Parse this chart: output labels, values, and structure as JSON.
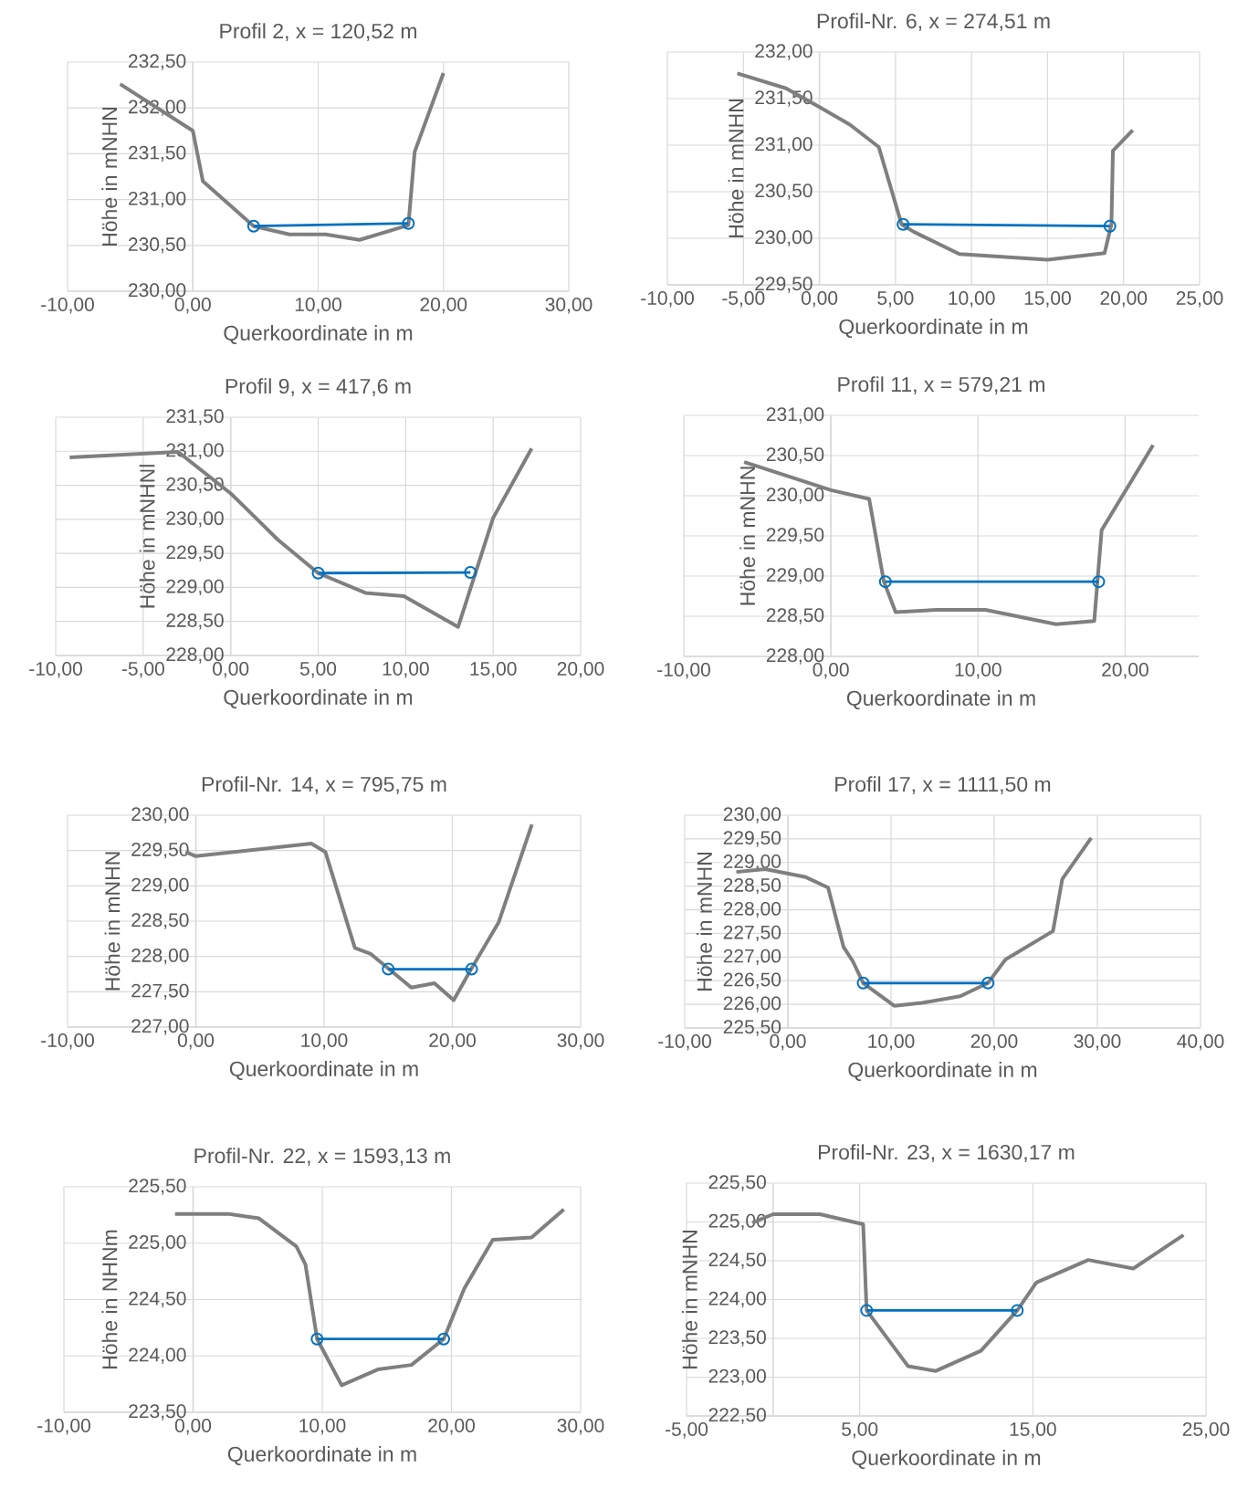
{
  "chart_data": [
    {
      "type": "line",
      "title": "Profil 2, x = 120,52 m",
      "xlabel": "Querkoordinate in m",
      "ylabel": "Höhe in mNHN",
      "grid": true,
      "xlim": [
        -10,
        30
      ],
      "xticks": [
        {
          "value": -10,
          "label": "-10,00"
        },
        {
          "value": 0,
          "label": "0,00"
        },
        {
          "value": 10,
          "label": "10,00"
        },
        {
          "value": 20,
          "label": "20,00"
        },
        {
          "value": 30,
          "label": "30,00"
        }
      ],
      "ylim": [
        230,
        232.5
      ],
      "yticks": [
        {
          "value": 230,
          "label": "230,00"
        },
        {
          "value": 230.5,
          "label": "230,50"
        },
        {
          "value": 231,
          "label": "231,00"
        },
        {
          "value": 231.5,
          "label": "231,50"
        },
        {
          "value": 232,
          "label": "232,00"
        },
        {
          "value": 232.5,
          "label": "232,50"
        }
      ],
      "series": [
        {
          "color": "#7f7f7f",
          "marker": "none",
          "x": [
            -5.8,
            0,
            0.8,
            4.85,
            7.7,
            10.6,
            13.3,
            17.2,
            17.7,
            20.0
          ],
          "values": [
            232.26,
            231.75,
            231.2,
            230.71,
            230.62,
            230.62,
            230.56,
            230.72,
            231.52,
            232.38
          ]
        },
        {
          "color": "#0070c0",
          "marker": "circle",
          "x": [
            4.85,
            17.2
          ],
          "values": [
            230.71,
            230.74
          ]
        }
      ]
    },
    {
      "type": "line",
      "title": "Profil-Nr. 6, x = 274,51 m",
      "xlabel": "Querkoordinate in m",
      "ylabel": "Höhe in mNHN",
      "grid": true,
      "xlim": [
        -10,
        25
      ],
      "xticks": [
        {
          "value": -10,
          "label": "-10,00"
        },
        {
          "value": -5,
          "label": "-5,00"
        },
        {
          "value": 0,
          "label": "0,00"
        },
        {
          "value": 5,
          "label": "5,00"
        },
        {
          "value": 10,
          "label": "10,00"
        },
        {
          "value": 15,
          "label": "15,00"
        },
        {
          "value": 20,
          "label": "20,00"
        },
        {
          "value": 25,
          "label": "25,00"
        }
      ],
      "ylim": [
        229.5,
        232
      ],
      "yticks": [
        {
          "value": 229.5,
          "label": "229,50"
        },
        {
          "value": 230,
          "label": "230,00"
        },
        {
          "value": 230.5,
          "label": "230,50"
        },
        {
          "value": 231,
          "label": "231,00"
        },
        {
          "value": 231.5,
          "label": "231,50"
        },
        {
          "value": 232,
          "label": "232,00"
        }
      ],
      "series": [
        {
          "color": "#7f7f7f",
          "marker": "none",
          "x": [
            -5.4,
            -2.2,
            0,
            2.0,
            3.9,
            5.4,
            6.2,
            9.2,
            15.0,
            18.75,
            19.2,
            19.3,
            20.6
          ],
          "values": [
            231.77,
            231.61,
            231.41,
            231.22,
            230.98,
            230.15,
            230.07,
            229.83,
            229.77,
            229.84,
            230.15,
            230.94,
            231.16
          ]
        },
        {
          "color": "#0070c0",
          "marker": "circle",
          "x": [
            5.5,
            19.1
          ],
          "values": [
            230.15,
            230.13
          ]
        }
      ]
    },
    {
      "type": "line",
      "title": "Profil 9, x = 417,6 m",
      "xlabel": "Querkoordinate in m",
      "ylabel": "Höhe in mNHNl",
      "grid": true,
      "xlim": [
        -10,
        20
      ],
      "xticks": [
        {
          "value": -10,
          "label": "-10,00"
        },
        {
          "value": -5,
          "label": "-5,00"
        },
        {
          "value": 0,
          "label": "0,00"
        },
        {
          "value": 5,
          "label": "5,00"
        },
        {
          "value": 10,
          "label": "10,00"
        },
        {
          "value": 15,
          "label": "15,00"
        },
        {
          "value": 20,
          "label": "20,00"
        }
      ],
      "ylim": [
        228,
        231.5
      ],
      "yticks": [
        {
          "value": 228,
          "label": "228,00"
        },
        {
          "value": 228.5,
          "label": "228,50"
        },
        {
          "value": 229,
          "label": "229,00"
        },
        {
          "value": 229.5,
          "label": "229,50"
        },
        {
          "value": 230,
          "label": "230,00"
        },
        {
          "value": 230.5,
          "label": "230,50"
        },
        {
          "value": 231,
          "label": "231,00"
        },
        {
          "value": 231.5,
          "label": "231,50"
        }
      ],
      "series": [
        {
          "color": "#7f7f7f",
          "marker": "none",
          "x": [
            -9.2,
            -3.0,
            0,
            1.0,
            2.7,
            5.0,
            7.7,
            9.9,
            13.0,
            15.0,
            17.2
          ],
          "values": [
            230.91,
            230.99,
            230.38,
            230.13,
            229.7,
            229.21,
            228.92,
            228.87,
            228.42,
            230.02,
            231.04
          ]
        },
        {
          "color": "#0070c0",
          "marker": "circle",
          "x": [
            5.0,
            13.7
          ],
          "values": [
            229.21,
            229.22
          ]
        }
      ]
    },
    {
      "type": "line",
      "title": "Profil 11, x = 579,21 m",
      "xlabel": "Querkoordinate in m",
      "ylabel": "Höhe in mNHN",
      "grid": true,
      "xlim": [
        -10,
        25
      ],
      "xticks": [
        {
          "value": -10,
          "label": "-10,00"
        },
        {
          "value": 0,
          "label": "0,00"
        },
        {
          "value": 10,
          "label": "10,00"
        },
        {
          "value": 20,
          "label": "20,00"
        }
      ],
      "ylim": [
        228,
        231
      ],
      "yticks": [
        {
          "value": 228,
          "label": "228,00"
        },
        {
          "value": 228.5,
          "label": "228,50"
        },
        {
          "value": 229,
          "label": "229,00"
        },
        {
          "value": 229.5,
          "label": "229,50"
        },
        {
          "value": 230,
          "label": "230,00"
        },
        {
          "value": 230.5,
          "label": "230,50"
        },
        {
          "value": 231,
          "label": "231,00"
        }
      ],
      "series": [
        {
          "color": "#7f7f7f",
          "marker": "none",
          "x": [
            -5.9,
            0,
            2.6,
            3.6,
            4.4,
            7.2,
            10.5,
            15.3,
            17.9,
            18.4,
            21.9
          ],
          "values": [
            230.42,
            230.07,
            229.96,
            228.93,
            228.55,
            228.58,
            228.58,
            228.4,
            228.44,
            229.57,
            230.63
          ]
        },
        {
          "color": "#0070c0",
          "marker": "circle",
          "x": [
            3.7,
            18.2
          ],
          "values": [
            228.93,
            228.93
          ]
        }
      ]
    },
    {
      "type": "line",
      "title": "Profil-Nr. 14, x = 795,75 m",
      "xlabel": "Querkoordinate in m",
      "ylabel": "Höhe in mNHN",
      "grid": true,
      "xlim": [
        -10,
        30
      ],
      "xticks": [
        {
          "value": -10,
          "label": "-10,00"
        },
        {
          "value": 0,
          "label": "0,00"
        },
        {
          "value": 10,
          "label": "10,00"
        },
        {
          "value": 20,
          "label": "20,00"
        },
        {
          "value": 30,
          "label": "30,00"
        }
      ],
      "ylim": [
        227,
        230
      ],
      "yticks": [
        {
          "value": 227,
          "label": "227,00"
        },
        {
          "value": 227.5,
          "label": "227,50"
        },
        {
          "value": 228,
          "label": "228,00"
        },
        {
          "value": 228.5,
          "label": "228,50"
        },
        {
          "value": 229,
          "label": "229,00"
        },
        {
          "value": 229.5,
          "label": "229,50"
        },
        {
          "value": 230,
          "label": "230,00"
        }
      ],
      "series": [
        {
          "color": "#7f7f7f",
          "marker": "none",
          "x": [
            -0.8,
            0,
            9.0,
            10.1,
            12.4,
            13.6,
            16.8,
            18.6,
            20.1,
            21.4,
            23.6,
            26.2
          ],
          "values": [
            229.48,
            229.42,
            229.6,
            229.48,
            228.12,
            228.04,
            227.56,
            227.62,
            227.38,
            227.8,
            228.48,
            229.87
          ]
        },
        {
          "color": "#0070c0",
          "marker": "circle",
          "x": [
            15.0,
            21.5
          ],
          "values": [
            227.82,
            227.82
          ]
        }
      ]
    },
    {
      "type": "line",
      "title": "Profil 17, x = 1111,50 m",
      "xlabel": "Querkoordinate in m",
      "ylabel": "Höhe in mNHN",
      "grid": true,
      "xlim": [
        -10,
        40
      ],
      "xticks": [
        {
          "value": -10,
          "label": "-10,00"
        },
        {
          "value": 0,
          "label": "0,00"
        },
        {
          "value": 10,
          "label": "10,00"
        },
        {
          "value": 20,
          "label": "20,00"
        },
        {
          "value": 30,
          "label": "30,00"
        },
        {
          "value": 40,
          "label": "40,00"
        }
      ],
      "ylim": [
        225.5,
        230
      ],
      "yticks": [
        {
          "value": 225.5,
          "label": "225,50"
        },
        {
          "value": 226,
          "label": "226,00"
        },
        {
          "value": 226.5,
          "label": "226,50"
        },
        {
          "value": 227,
          "label": "227,00"
        },
        {
          "value": 227.5,
          "label": "227,50"
        },
        {
          "value": 228,
          "label": "228,00"
        },
        {
          "value": 228.5,
          "label": "228,50"
        },
        {
          "value": 229,
          "label": "229,00"
        },
        {
          "value": 229.5,
          "label": "229,50"
        },
        {
          "value": 230,
          "label": "230,00"
        }
      ],
      "series": [
        {
          "color": "#7f7f7f",
          "marker": "none",
          "x": [
            -5.0,
            -2.2,
            1.75,
            3.9,
            5.4,
            6.3,
            7.3,
            10.3,
            13.0,
            16.7,
            19.4,
            21.1,
            25.7,
            26.6,
            29.4
          ],
          "values": [
            228.8,
            228.86,
            228.69,
            228.47,
            227.21,
            226.91,
            226.45,
            225.97,
            226.03,
            226.17,
            226.45,
            226.95,
            227.55,
            228.65,
            229.52
          ]
        },
        {
          "color": "#0070c0",
          "marker": "circle",
          "x": [
            7.3,
            19.4
          ],
          "values": [
            226.45,
            226.45
          ]
        }
      ]
    },
    {
      "type": "line",
      "title": "Profil-Nr. 22, x = 1593,13 m",
      "xlabel": "Querkoordinate in m",
      "ylabel": "Höhe in NHNm",
      "grid": true,
      "xlim": [
        -10,
        30
      ],
      "xticks": [
        {
          "value": -10,
          "label": "-10,00"
        },
        {
          "value": 0,
          "label": "0,00"
        },
        {
          "value": 10,
          "label": "10,00"
        },
        {
          "value": 20,
          "label": "20,00"
        },
        {
          "value": 30,
          "label": "30,00"
        }
      ],
      "ylim": [
        223.5,
        225.5
      ],
      "yticks": [
        {
          "value": 223.5,
          "label": "223,50"
        },
        {
          "value": 224,
          "label": "224,00"
        },
        {
          "value": 224.5,
          "label": "224,50"
        },
        {
          "value": 225,
          "label": "225,00"
        },
        {
          "value": 225.5,
          "label": "225,50"
        }
      ],
      "series": [
        {
          "color": "#7f7f7f",
          "marker": "none",
          "x": [
            -1.4,
            0,
            2.7,
            5.1,
            8.0,
            8.7,
            9.6,
            11.5,
            14.3,
            16.9,
            19.4,
            21.0,
            23.2,
            26.2,
            28.7
          ],
          "values": [
            225.26,
            225.26,
            225.26,
            225.22,
            224.97,
            224.81,
            224.15,
            223.74,
            223.88,
            223.92,
            224.15,
            224.6,
            225.03,
            225.05,
            225.3
          ]
        },
        {
          "color": "#0070c0",
          "marker": "circle",
          "x": [
            9.6,
            19.4
          ],
          "values": [
            224.15,
            224.15
          ]
        }
      ]
    },
    {
      "type": "line",
      "title": "Profil-Nr. 23, x = 1630,17 m",
      "xlabel": "Querkoordinate in m",
      "ylabel": "Höhe in mNHN",
      "grid": true,
      "xlim": [
        -5,
        25
      ],
      "xticks": [
        {
          "value": -5,
          "label": "-5,00"
        },
        {
          "value": 5,
          "label": "5,00"
        },
        {
          "value": 15,
          "label": "15,00"
        },
        {
          "value": 25,
          "label": "25,00"
        }
      ],
      "ylim": [
        222.5,
        225.5
      ],
      "yticks": [
        {
          "value": 222.5,
          "label": "222,50"
        },
        {
          "value": 223,
          "label": "223,00"
        },
        {
          "value": 223.5,
          "label": "223,50"
        },
        {
          "value": 224,
          "label": "224,00"
        },
        {
          "value": 224.5,
          "label": "224,50"
        },
        {
          "value": 225,
          "label": "225,00"
        },
        {
          "value": 225.5,
          "label": "225,50"
        }
      ],
      "series": [
        {
          "color": "#7f7f7f",
          "marker": "none",
          "x": [
            -1.2,
            0,
            2.7,
            5.2,
            5.4,
            7.8,
            9.4,
            12.0,
            14.1,
            15.2,
            18.2,
            20.8,
            23.7
          ],
          "values": [
            224.99,
            225.1,
            225.1,
            224.97,
            223.86,
            223.14,
            223.08,
            223.34,
            223.86,
            224.22,
            224.51,
            224.4,
            224.83
          ]
        },
        {
          "color": "#0070c0",
          "marker": "circle",
          "x": [
            5.4,
            14.1
          ],
          "values": [
            223.86,
            223.86
          ]
        }
      ]
    }
  ]
}
